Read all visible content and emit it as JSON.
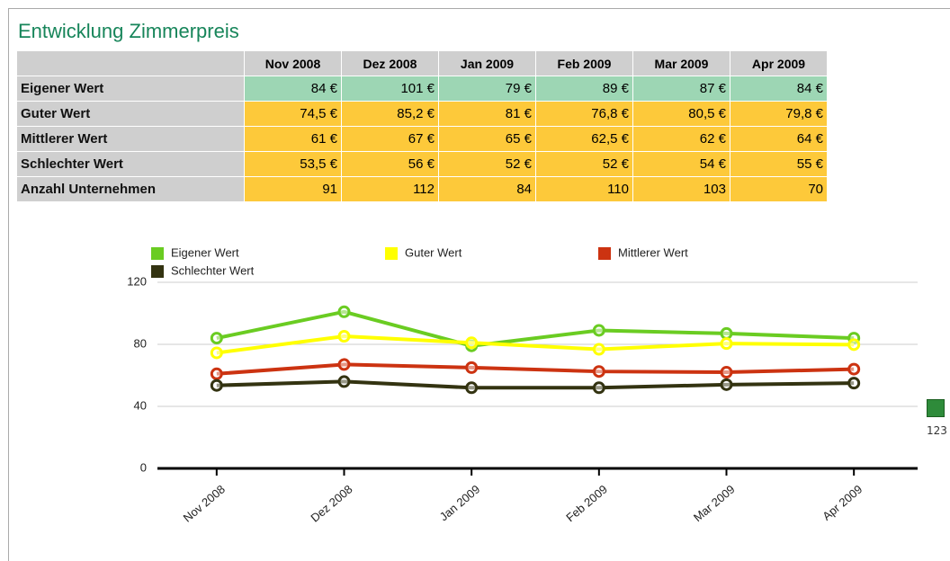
{
  "title": "Entwicklung Zimmerpreis",
  "table": {
    "columns": [
      "Nov 2008",
      "Dez 2008",
      "Jan 2009",
      "Feb 2009",
      "Mar 2009",
      "Apr 2009"
    ],
    "rows": [
      {
        "label": "Eigener Wert",
        "cells": [
          "84 €",
          "101 €",
          "79 €",
          "89 €",
          "87 €",
          "84 €"
        ]
      },
      {
        "label": "Guter Wert",
        "cells": [
          "74,5 €",
          "85,2 €",
          "81 €",
          "76,8 €",
          "80,5 €",
          "79,8 €"
        ]
      },
      {
        "label": "Mittlerer Wert",
        "cells": [
          "61 €",
          "67 €",
          "65 €",
          "62,5 €",
          "62 €",
          "64 €"
        ]
      },
      {
        "label": "Schlechter Wert",
        "cells": [
          "53,5 €",
          "56 €",
          "52 €",
          "52 €",
          "54 €",
          "55 €"
        ]
      },
      {
        "label": "Anzahl Unternehmen",
        "cells": [
          "91",
          "112",
          "84",
          "110",
          "103",
          "70"
        ]
      }
    ]
  },
  "chart_data": {
    "type": "line",
    "categories": [
      "Nov 2008",
      "Dez 2008",
      "Jan 2009",
      "Feb 2009",
      "Mar 2009",
      "Apr 2009"
    ],
    "series": [
      {
        "name": "Eigener Wert",
        "color": "#6acc22",
        "values": [
          84,
          101,
          79,
          89,
          87,
          84
        ]
      },
      {
        "name": "Guter Wert",
        "color": "#ffff00",
        "values": [
          74.5,
          85.2,
          81,
          76.8,
          80.5,
          79.8
        ]
      },
      {
        "name": "Mittlerer Wert",
        "color": "#cc3311",
        "values": [
          61,
          67,
          65,
          62.5,
          62,
          64
        ]
      },
      {
        "name": "Schlechter Wert",
        "color": "#333311",
        "values": [
          53.5,
          56,
          52,
          52,
          54,
          55
        ]
      }
    ],
    "ylim": [
      0,
      120
    ],
    "yticks": [
      0,
      40,
      80,
      120
    ],
    "grid": true
  },
  "export_label": "123"
}
